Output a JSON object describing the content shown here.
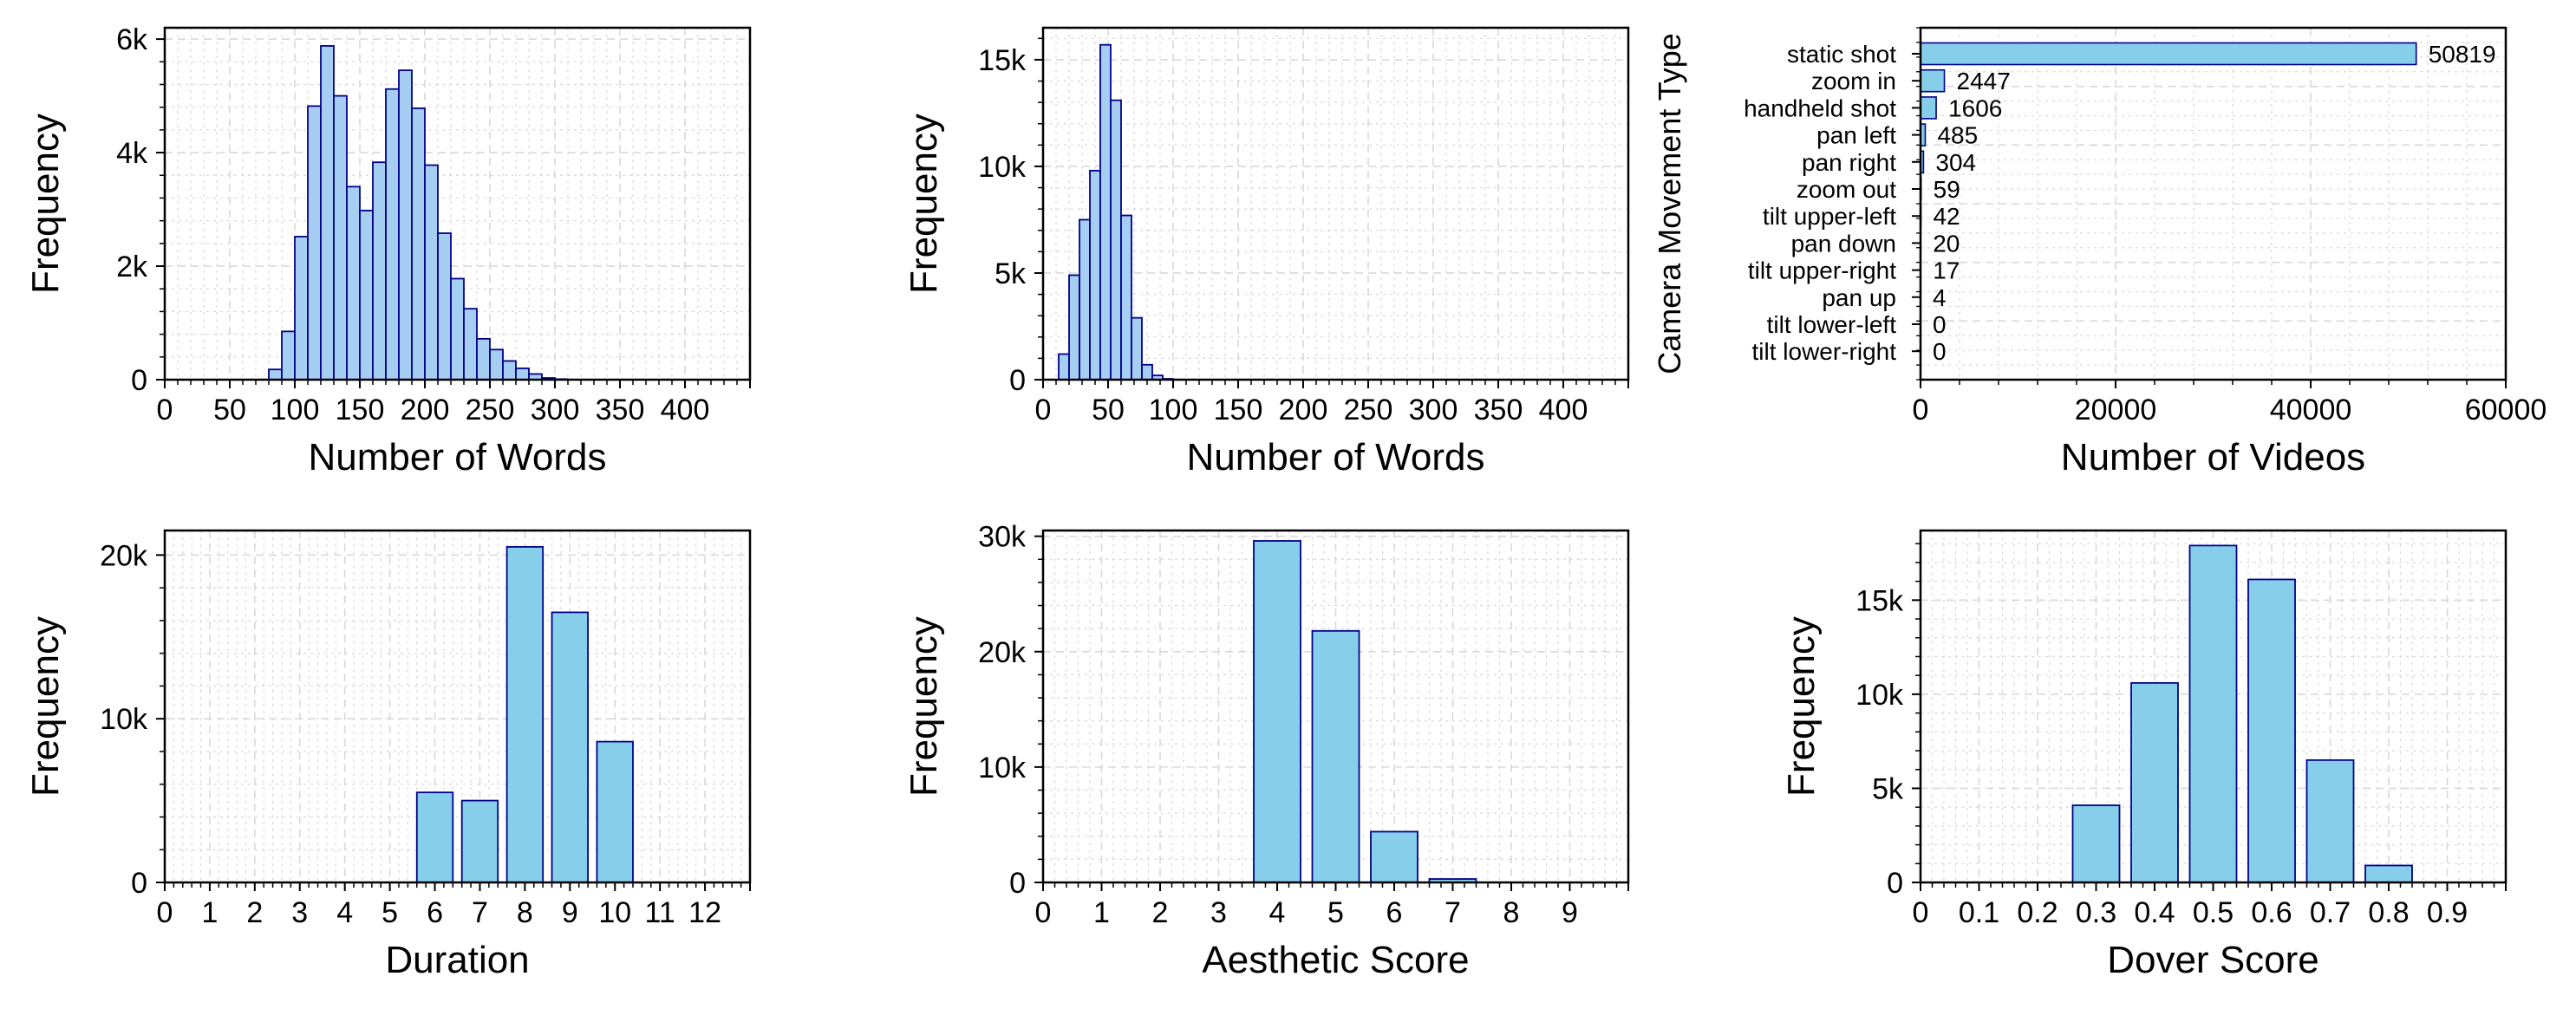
{
  "colors": {
    "bar_fill": "#87ceeb",
    "hist_fill": "#a6cdf2",
    "bar_edge": "#00008b",
    "grid": "#d9d9d9",
    "axis": "#000000"
  },
  "chart_data": [
    {
      "type": "bar",
      "subtype": "histogram",
      "xlabel": "Number of Words",
      "ylabel": "Frequency",
      "xlim": [
        0,
        450
      ],
      "ylim": [
        0,
        6200
      ],
      "bin_width": 10,
      "x_ticks": [
        0,
        50,
        100,
        150,
        200,
        250,
        300,
        350,
        400
      ],
      "x_tick_labels": [
        "0",
        "50",
        "100",
        "150",
        "200",
        "250",
        "300",
        "350",
        "400"
      ],
      "y_ticks": [
        0,
        2000,
        4000,
        6000
      ],
      "y_tick_labels": [
        "0",
        "2k",
        "4k",
        "6k"
      ],
      "grid": true,
      "bins": [
        {
          "x": 80,
          "value": 180
        },
        {
          "x": 90,
          "value": 850
        },
        {
          "x": 100,
          "value": 2520
        },
        {
          "x": 110,
          "value": 4820
        },
        {
          "x": 120,
          "value": 5880
        },
        {
          "x": 130,
          "value": 5000
        },
        {
          "x": 140,
          "value": 3400
        },
        {
          "x": 150,
          "value": 2980
        },
        {
          "x": 160,
          "value": 3830
        },
        {
          "x": 170,
          "value": 5120
        },
        {
          "x": 180,
          "value": 5450
        },
        {
          "x": 190,
          "value": 4780
        },
        {
          "x": 200,
          "value": 3780
        },
        {
          "x": 210,
          "value": 2580
        },
        {
          "x": 220,
          "value": 1780
        },
        {
          "x": 230,
          "value": 1250
        },
        {
          "x": 240,
          "value": 720
        },
        {
          "x": 250,
          "value": 530
        },
        {
          "x": 260,
          "value": 330
        },
        {
          "x": 270,
          "value": 200
        },
        {
          "x": 280,
          "value": 100
        },
        {
          "x": 290,
          "value": 30
        },
        {
          "x": 300,
          "value": 10
        }
      ]
    },
    {
      "type": "bar",
      "subtype": "histogram",
      "xlabel": "Number of Words",
      "ylabel": "Frequency",
      "xlim": [
        0,
        450
      ],
      "ylim": [
        0,
        16500
      ],
      "bin_width": 8,
      "x_ticks": [
        0,
        50,
        100,
        150,
        200,
        250,
        300,
        350,
        400
      ],
      "x_tick_labels": [
        "0",
        "50",
        "100",
        "150",
        "200",
        "250",
        "300",
        "350",
        "400"
      ],
      "y_ticks": [
        0,
        5000,
        10000,
        15000
      ],
      "y_tick_labels": [
        "0",
        "5k",
        "10k",
        "15k"
      ],
      "grid": true,
      "bins": [
        {
          "x": 12,
          "value": 1200
        },
        {
          "x": 20,
          "value": 4900
        },
        {
          "x": 28,
          "value": 7500
        },
        {
          "x": 36,
          "value": 9800
        },
        {
          "x": 44,
          "value": 15700
        },
        {
          "x": 52,
          "value": 13100
        },
        {
          "x": 60,
          "value": 7700
        },
        {
          "x": 68,
          "value": 2900
        },
        {
          "x": 76,
          "value": 700
        },
        {
          "x": 84,
          "value": 200
        },
        {
          "x": 92,
          "value": 40
        }
      ]
    },
    {
      "type": "bar",
      "orientation": "horizontal",
      "xlabel": "Number of Videos",
      "ylabel": "Camera Movement Type",
      "xlim": [
        0,
        60000
      ],
      "x_ticks": [
        0,
        20000,
        40000,
        60000
      ],
      "x_tick_labels": [
        "0",
        "20000",
        "40000",
        "60000"
      ],
      "grid": true,
      "categories": [
        "static shot",
        "zoom in",
        "handheld shot",
        "pan left",
        "pan right",
        "zoom out",
        "tilt upper-left",
        "pan down",
        "tilt upper-right",
        "pan up",
        "tilt lower-left",
        "tilt lower-right"
      ],
      "values": [
        50819,
        2447,
        1606,
        485,
        304,
        59,
        42,
        20,
        17,
        4,
        0,
        0
      ],
      "value_labels": [
        "50819",
        "2447",
        "1606",
        "485",
        "304",
        "59",
        "42",
        "20",
        "17",
        "4",
        "0",
        "0"
      ]
    },
    {
      "type": "bar",
      "xlabel": "Duration",
      "ylabel": "Frequency",
      "xlim": [
        0,
        13
      ],
      "ylim": [
        0,
        21500
      ],
      "bar_width": 0.8,
      "x_ticks": [
        0,
        1,
        2,
        3,
        4,
        5,
        6,
        7,
        8,
        9,
        10,
        11,
        12
      ],
      "x_tick_labels": [
        "0",
        "1",
        "2",
        "3",
        "4",
        "5",
        "6",
        "7",
        "8",
        "9",
        "10",
        "11",
        "12"
      ],
      "y_ticks": [
        0,
        10000,
        20000
      ],
      "y_tick_labels": [
        "0",
        "10k",
        "20k"
      ],
      "grid": true,
      "x": [
        6,
        7,
        8,
        9,
        10
      ],
      "values": [
        5500,
        5000,
        20500,
        16500,
        8600
      ]
    },
    {
      "type": "bar",
      "xlabel": "Aesthetic Score",
      "ylabel": "Frequency",
      "xlim": [
        0,
        10
      ],
      "ylim": [
        0,
        30500
      ],
      "bar_width": 0.8,
      "x_ticks": [
        0,
        1,
        2,
        3,
        4,
        5,
        6,
        7,
        8,
        9
      ],
      "x_tick_labels": [
        "0",
        "1",
        "2",
        "3",
        "4",
        "5",
        "6",
        "7",
        "8",
        "9"
      ],
      "y_ticks": [
        0,
        10000,
        20000,
        30000
      ],
      "y_tick_labels": [
        "0",
        "10k",
        "20k",
        "30k"
      ],
      "grid": true,
      "x": [
        4,
        5,
        6,
        7
      ],
      "values": [
        29600,
        21800,
        4400,
        300
      ]
    },
    {
      "type": "bar",
      "xlabel": "Dover Score",
      "ylabel": "Frequency",
      "xlim": [
        0,
        1.0
      ],
      "ylim": [
        0,
        18700
      ],
      "bar_width": 0.08,
      "x_ticks": [
        0,
        0.1,
        0.2,
        0.3,
        0.4,
        0.5,
        0.6,
        0.7,
        0.8,
        0.9
      ],
      "x_tick_labels": [
        "0",
        "0.1",
        "0.2",
        "0.3",
        "0.4",
        "0.5",
        "0.6",
        "0.7",
        "0.8",
        "0.9"
      ],
      "y_ticks": [
        0,
        5000,
        10000,
        15000
      ],
      "y_tick_labels": [
        "0",
        "5k",
        "10k",
        "15k"
      ],
      "grid": true,
      "x": [
        0.3,
        0.4,
        0.5,
        0.6,
        0.7,
        0.8
      ],
      "values": [
        4100,
        10600,
        17900,
        16100,
        6500,
        900
      ]
    }
  ]
}
